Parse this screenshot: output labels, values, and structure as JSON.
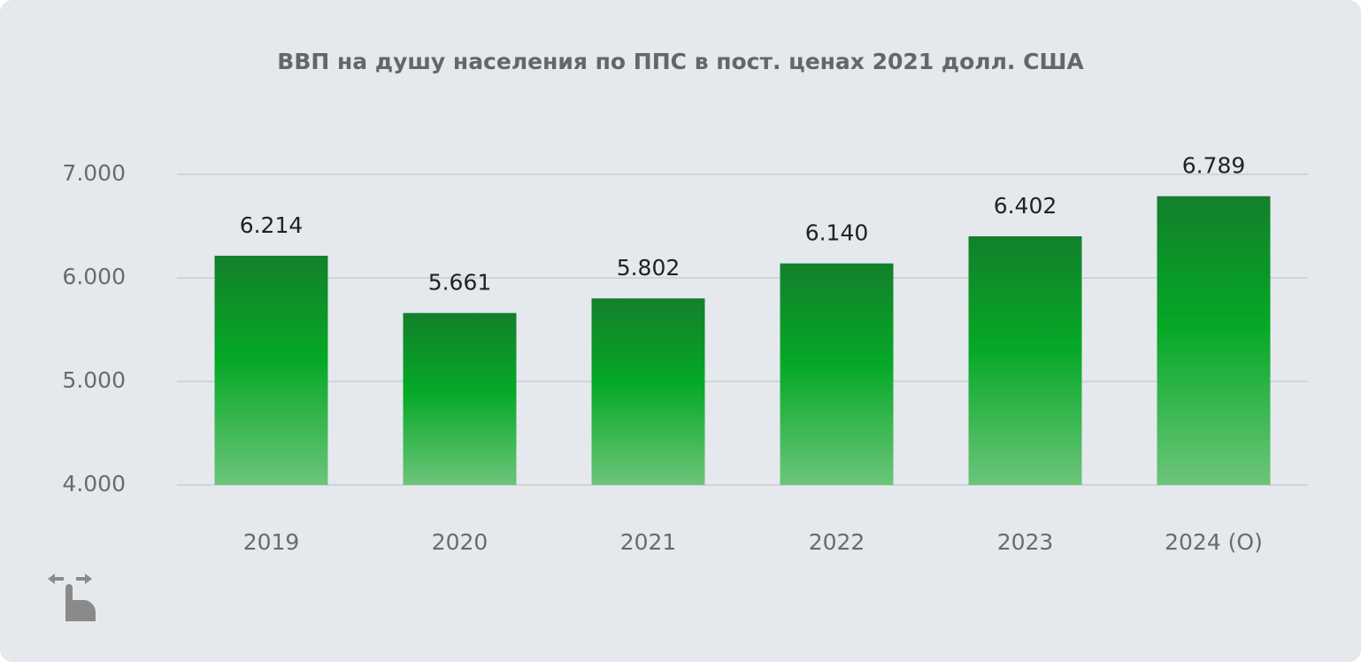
{
  "chart_data": {
    "type": "bar",
    "title": "ВВП на душу населения по ППС в пост. ценах 2021 долл. США",
    "categories": [
      "2019",
      "2020",
      "2021",
      "2022",
      "2023",
      "2024 (О)"
    ],
    "values": [
      6214,
      5661,
      5802,
      6140,
      6402,
      6789
    ],
    "value_labels": [
      "6.214",
      "5.661",
      "5.802",
      "6.140",
      "6.402",
      "6.789"
    ],
    "ylim": [
      4000,
      7000
    ],
    "yticks": [
      {
        "value": 4000,
        "label": "4.000"
      },
      {
        "value": 5000,
        "label": "5.000"
      },
      {
        "value": 6000,
        "label": "6.000"
      },
      {
        "value": 7000,
        "label": "7.000"
      }
    ],
    "grid": true
  }
}
